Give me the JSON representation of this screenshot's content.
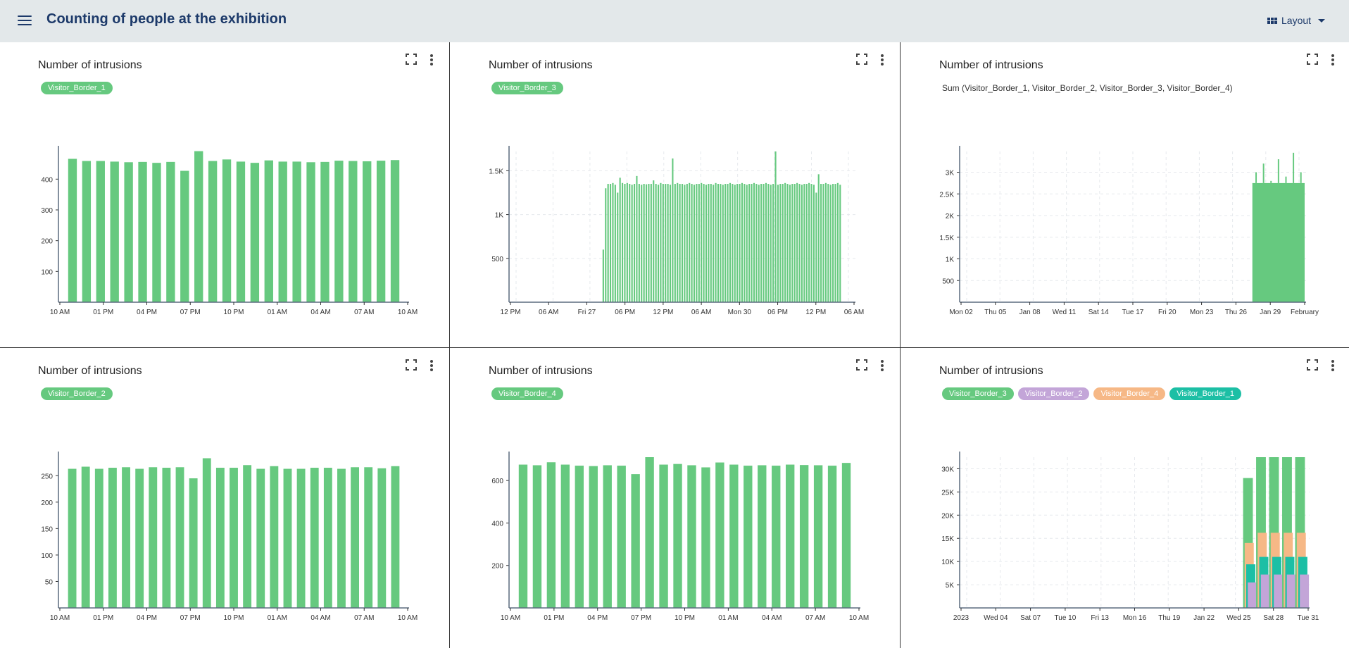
{
  "header": {
    "title": "Counting of people at the exhibition",
    "menu_icon": "hamburger-menu-icon",
    "layout_label": "Layout",
    "layout_icon": "grid-icon"
  },
  "colors": {
    "green": "#66c97f",
    "purple": "#c3a5d8",
    "orange": "#f6b886",
    "teal": "#1cbfa5",
    "title": "#1d3a6a",
    "header_bg": "#e3e8ea"
  },
  "panels": [
    {
      "title": "Number of intrusions",
      "legend": [
        {
          "label": "Visitor_Border_1",
          "color": "#66c97f"
        }
      ],
      "chart_data": {
        "type": "bar",
        "x_tick_labels": [
          "10 AM",
          "01 PM",
          "04 PM",
          "07 PM",
          "10 PM",
          "01 AM",
          "04 AM",
          "07 AM",
          "10 AM"
        ],
        "y_ticks": [
          100,
          200,
          300,
          400
        ],
        "y_tick_labels": [
          "100",
          "200",
          "300",
          "400"
        ],
        "ylim": [
          0,
          490
        ],
        "values": [
          466,
          459,
          459,
          457,
          455,
          456,
          453,
          456,
          427,
          491,
          459,
          464,
          457,
          453,
          461,
          457,
          457,
          455,
          456,
          460,
          459,
          458,
          460,
          462
        ]
      }
    },
    {
      "title": "Number of intrusions",
      "legend": [
        {
          "label": "Visitor_Border_3",
          "color": "#66c97f"
        }
      ],
      "chart_data": {
        "type": "bar",
        "x_tick_labels": [
          "12 PM",
          "06 AM",
          "Fri 27",
          "06 PM",
          "12 PM",
          "06 AM",
          "Mon 30",
          "06 PM",
          "12 PM",
          "06 AM"
        ],
        "y_ticks": [
          500,
          1000,
          1500
        ],
        "y_tick_labels": [
          "500",
          "1K",
          "1.5K"
        ],
        "ylim": [
          0,
          1720
        ],
        "gridlines": true,
        "bar_count": 100,
        "values": [
          600,
          1300,
          1350,
          1350,
          1360,
          1340,
          1250,
          1420,
          1360,
          1350,
          1360,
          1350,
          1340,
          1350,
          1440,
          1350,
          1340,
          1350,
          1345,
          1350,
          1350,
          1390,
          1350,
          1340,
          1360,
          1350,
          1350,
          1350,
          1340,
          1640,
          1350,
          1360,
          1350,
          1350,
          1340,
          1350,
          1360,
          1350,
          1340,
          1350,
          1350,
          1360,
          1350,
          1340,
          1350,
          1350,
          1340,
          1360,
          1350,
          1350,
          1340,
          1350,
          1350,
          1360,
          1350,
          1340,
          1350,
          1350,
          1360,
          1350,
          1340,
          1350,
          1350,
          1360,
          1350,
          1340,
          1350,
          1350,
          1360,
          1350,
          1340,
          1350,
          1720,
          1340,
          1350,
          1350,
          1360,
          1350,
          1340,
          1350,
          1350,
          1360,
          1350,
          1340,
          1350,
          1350,
          1360,
          1350,
          1340,
          1250,
          1460,
          1350,
          1350,
          1360,
          1350,
          1340,
          1350,
          1350,
          1360,
          1340
        ]
      }
    },
    {
      "title": "Number of intrusions",
      "formula": "Sum (Visitor_Border_1, Visitor_Border_2, Visitor_Border_3, Visitor_Border_4)",
      "chart_data": {
        "type": "area",
        "x_tick_labels": [
          "Mon 02",
          "Thu 05",
          "Jan 08",
          "Wed 11",
          "Sat 14",
          "Tue 17",
          "Fri 20",
          "Mon 23",
          "Thu 26",
          "Jan 29",
          "February"
        ],
        "y_ticks": [
          500,
          1000,
          1500,
          2000,
          2500,
          3000
        ],
        "y_tick_labels": [
          "500",
          "1K",
          "1.5K",
          "2K",
          "2.5K",
          "3K"
        ],
        "ylim": [
          0,
          3480
        ],
        "gridlines": true,
        "active_range_start": "Thu 26",
        "approx_level": 2750,
        "spikes": [
          3000,
          3200,
          2800,
          3300,
          2900,
          3450,
          3000
        ]
      }
    },
    {
      "title": "Number of intrusions",
      "legend": [
        {
          "label": "Visitor_Border_2",
          "color": "#66c97f"
        }
      ],
      "chart_data": {
        "type": "bar",
        "x_tick_labels": [
          "10 AM",
          "01 PM",
          "04 PM",
          "07 PM",
          "10 PM",
          "01 AM",
          "04 AM",
          "07 AM",
          "10 AM"
        ],
        "y_ticks": [
          50,
          100,
          150,
          200,
          250
        ],
        "y_tick_labels": [
          "50",
          "100",
          "150",
          "200",
          "250"
        ],
        "ylim": [
          0,
          285
        ],
        "values": [
          263,
          267,
          263,
          265,
          266,
          263,
          266,
          265,
          266,
          245,
          283,
          265,
          265,
          270,
          263,
          268,
          263,
          263,
          265,
          265,
          263,
          266,
          266,
          264,
          268
        ]
      }
    },
    {
      "title": "Number of intrusions",
      "legend": [
        {
          "label": "Visitor_Border_4",
          "color": "#66c97f"
        }
      ],
      "chart_data": {
        "type": "bar",
        "x_tick_labels": [
          "10 AM",
          "01 PM",
          "04 PM",
          "07 PM",
          "10 PM",
          "01 AM",
          "04 AM",
          "07 AM",
          "10 AM"
        ],
        "y_ticks": [
          200,
          400,
          600
        ],
        "y_tick_labels": [
          "200",
          "400",
          "600"
        ],
        "ylim": [
          0,
          710
        ],
        "values": [
          675,
          672,
          686,
          675,
          670,
          668,
          672,
          670,
          630,
          710,
          675,
          678,
          672,
          662,
          685,
          675,
          670,
          672,
          670,
          675,
          673,
          672,
          670,
          683
        ]
      }
    },
    {
      "title": "Number of intrusions",
      "legend": [
        {
          "label": "Visitor_Border_3",
          "color": "#66c97f"
        },
        {
          "label": "Visitor_Border_2",
          "color": "#c3a5d8"
        },
        {
          "label": "Visitor_Border_4",
          "color": "#f6b886"
        },
        {
          "label": "Visitor_Border_1",
          "color": "#1cbfa5"
        }
      ],
      "chart_data": {
        "type": "bar",
        "x_tick_labels": [
          "2023",
          "Wed 04",
          "Sat 07",
          "Tue 10",
          "Fri 13",
          "Mon 16",
          "Thu 19",
          "Jan 22",
          "Wed 25",
          "Sat 28",
          "Tue 31"
        ],
        "y_ticks": [
          5000,
          10000,
          15000,
          20000,
          25000,
          30000
        ],
        "y_tick_labels": [
          "5K",
          "10K",
          "15K",
          "20K",
          "25K",
          "30K"
        ],
        "ylim": [
          0,
          32500
        ],
        "gridlines": true,
        "active_range_start": "Sat 28",
        "series": [
          {
            "name": "Visitor_Border_3",
            "color": "#66c97f",
            "values": [
              28000,
              32500,
              32500,
              32500,
              32500
            ]
          },
          {
            "name": "Visitor_Border_2",
            "color": "#c3a5d8",
            "values": [
              5500,
              7200,
              7200,
              7200,
              7200
            ]
          },
          {
            "name": "Visitor_Border_4",
            "color": "#f6b886",
            "values": [
              14000,
              16200,
              16200,
              16200,
              16200
            ]
          },
          {
            "name": "Visitor_Border_1",
            "color": "#1cbfa5",
            "values": [
              9400,
              11000,
              11000,
              11000,
              11000
            ]
          }
        ]
      }
    }
  ]
}
